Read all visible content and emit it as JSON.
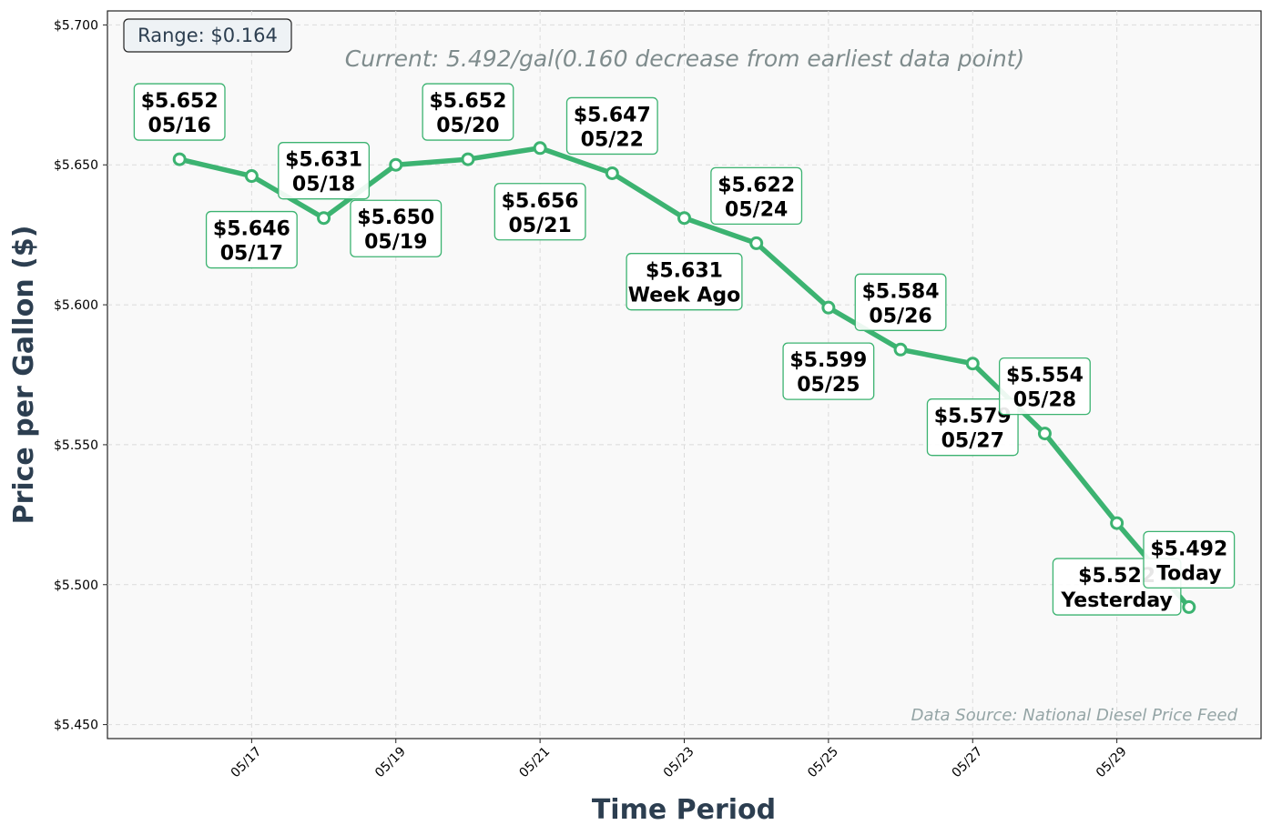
{
  "chart_data": {
    "type": "line",
    "title": "",
    "subtitle": "Current: 5.492/gal(0.160 decrease from earliest data point)",
    "xlabel": "Time Period",
    "ylabel": "Price per Gallon ($)",
    "ylim": [
      5.445,
      5.705
    ],
    "xlim": [
      "05/15",
      "05/31"
    ],
    "yticks": [
      5.45,
      5.5,
      5.55,
      5.6,
      5.65,
      5.7
    ],
    "ytick_labels": [
      "$5.450",
      "$5.500",
      "$5.550",
      "$5.600",
      "$5.650",
      "$5.700"
    ],
    "xticks": [
      "05/17",
      "05/19",
      "05/21",
      "05/23",
      "05/25",
      "05/27",
      "05/29"
    ],
    "grid": true,
    "line_color": "#3cb371",
    "series": [
      {
        "x": [
          "05/16",
          "05/17",
          "05/18",
          "05/19",
          "05/20",
          "05/21",
          "05/22",
          "05/23",
          "05/24",
          "05/25",
          "05/26",
          "05/27",
          "05/28",
          "05/29",
          "05/30"
        ],
        "values": [
          5.652,
          5.646,
          5.631,
          5.65,
          5.652,
          5.656,
          5.647,
          5.631,
          5.622,
          5.599,
          5.584,
          5.579,
          5.554,
          5.522,
          5.492
        ]
      }
    ],
    "annotations": [
      {
        "price": "$5.652",
        "label": "05/16",
        "pos": "above"
      },
      {
        "price": "$5.646",
        "label": "05/17",
        "pos": "below"
      },
      {
        "price": "$5.631",
        "label": "05/18",
        "pos": "above"
      },
      {
        "price": "$5.650",
        "label": "05/19",
        "pos": "below"
      },
      {
        "price": "$5.652",
        "label": "05/20",
        "pos": "above"
      },
      {
        "price": "$5.656",
        "label": "05/21",
        "pos": "below"
      },
      {
        "price": "$5.647",
        "label": "05/22",
        "pos": "above"
      },
      {
        "price": "$5.631",
        "label": "Week Ago",
        "pos": "below"
      },
      {
        "price": "$5.622",
        "label": "05/24",
        "pos": "above"
      },
      {
        "price": "$5.599",
        "label": "05/25",
        "pos": "below"
      },
      {
        "price": "$5.584",
        "label": "05/26",
        "pos": "above"
      },
      {
        "price": "$5.579",
        "label": "05/27",
        "pos": "below"
      },
      {
        "price": "$5.554",
        "label": "05/28",
        "pos": "above"
      },
      {
        "price": "$5.522",
        "label": "Yesterday",
        "pos": "below"
      },
      {
        "price": "$5.492",
        "label": "Today",
        "pos": "above"
      }
    ],
    "range_label": "Range: $0.164",
    "source_label": "Data Source: National Diesel Price Feed"
  }
}
